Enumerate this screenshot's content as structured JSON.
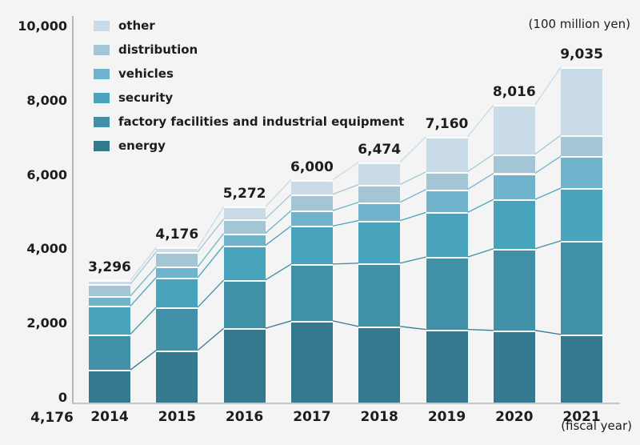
{
  "header": {
    "unit_label": "(100 million yen)"
  },
  "footer": {
    "fiscal_year_label": "(fiscal year)",
    "stray_total_label": "4,176"
  },
  "colors": {
    "background": "#f3f4f3",
    "axis": "#b5b7b5",
    "text": "#1d1d1d",
    "separator": "#ffffff"
  },
  "chart_data": {
    "type": "bar",
    "stacked": true,
    "title": "",
    "unit": "100 million yen",
    "xlabel": "(fiscal year)",
    "ylabel": "",
    "ylim": [
      0,
      10000
    ],
    "grid": false,
    "legend_position": "top-left",
    "categories": [
      "2014",
      "2015",
      "2016",
      "2017",
      "2018",
      "2019",
      "2020",
      "2021"
    ],
    "series": [
      {
        "name": "energy",
        "color": "#35798e",
        "values": [
          880,
          1410,
          2000,
          2200,
          2050,
          1970,
          1945,
          1835
        ]
      },
      {
        "name": "factory facilities and industrial equipment",
        "color": "#4090a7",
        "values": [
          960,
          1160,
          1300,
          1530,
          1705,
          1950,
          2200,
          2520
        ]
      },
      {
        "name": "security",
        "color": "#48a4bd",
        "values": [
          760,
          800,
          930,
          1025,
          1145,
          1200,
          1325,
          1420
        ]
      },
      {
        "name": "vehicles",
        "color": "#6fb3cd",
        "values": [
          270,
          290,
          325,
          415,
          495,
          620,
          705,
          860
        ]
      },
      {
        "name": "distribution",
        "color": "#a3c6d7",
        "values": [
          320,
          400,
          390,
          437,
          475,
          475,
          515,
          565
        ]
      },
      {
        "name": "other",
        "color": "#c8dbe7",
        "values": [
          106,
          116,
          327,
          393,
          604,
          945,
          1326,
          1835
        ]
      }
    ],
    "stack_order": "bottom-to-top",
    "legend_order_top_to_bottom": [
      "other",
      "distribution",
      "vehicles",
      "security",
      "factory facilities and industrial equipment",
      "energy"
    ],
    "totals": [
      3296,
      4176,
      5272,
      6000,
      6474,
      7160,
      8016,
      9035
    ],
    "totals_formatted": [
      "3,296",
      "4,176",
      "5,272",
      "6,000",
      "6,474",
      "7,160",
      "8,016",
      "9,035"
    ],
    "y_axis": {
      "ticks": [
        0,
        2000,
        4000,
        6000,
        8000,
        10000
      ],
      "tick_labels": [
        "0",
        "2,000",
        "4,000",
        "6,000",
        "8,000",
        "10,000"
      ]
    },
    "connector_lines": true
  }
}
